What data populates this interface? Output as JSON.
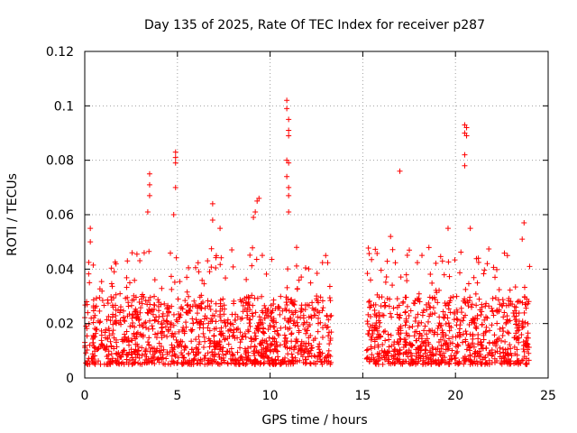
{
  "chart_data": {
    "type": "scatter",
    "title": "Day 135 of 2025, Rate Of TEC Index for receiver p287",
    "xlabel": "GPS time / hours",
    "ylabel": "ROTI / TECUs",
    "xlim": [
      0,
      25
    ],
    "ylim": [
      0,
      0.12
    ],
    "xticks": [
      "0",
      "5",
      "10",
      "15",
      "20",
      "25"
    ],
    "yticks": [
      "0",
      "0.02",
      "0.04",
      "0.06",
      "0.08",
      "0.1",
      "0.12"
    ],
    "grid": true,
    "marker": "+",
    "color": "#ff0000",
    "segments": [
      {
        "x_start": 0.0,
        "x_end": 13.3
      },
      {
        "x_start": 15.2,
        "x_end": 24.0
      }
    ],
    "series": [
      {
        "notable_points": [
          {
            "x": 0.3,
            "y": 0.055
          },
          {
            "x": 0.3,
            "y": 0.05
          },
          {
            "x": 0.1,
            "y": 0.028
          },
          {
            "x": 2.3,
            "y": 0.043
          },
          {
            "x": 3.5,
            "y": 0.075
          },
          {
            "x": 3.5,
            "y": 0.071
          },
          {
            "x": 3.5,
            "y": 0.067
          },
          {
            "x": 3.4,
            "y": 0.061
          },
          {
            "x": 4.9,
            "y": 0.083
          },
          {
            "x": 4.9,
            "y": 0.081
          },
          {
            "x": 4.9,
            "y": 0.079
          },
          {
            "x": 4.9,
            "y": 0.07
          },
          {
            "x": 4.8,
            "y": 0.06
          },
          {
            "x": 6.9,
            "y": 0.064
          },
          {
            "x": 6.9,
            "y": 0.058
          },
          {
            "x": 7.3,
            "y": 0.055
          },
          {
            "x": 9.4,
            "y": 0.066
          },
          {
            "x": 9.3,
            "y": 0.065
          },
          {
            "x": 9.2,
            "y": 0.061
          },
          {
            "x": 9.1,
            "y": 0.059
          },
          {
            "x": 10.9,
            "y": 0.102
          },
          {
            "x": 10.9,
            "y": 0.099
          },
          {
            "x": 11.0,
            "y": 0.095
          },
          {
            "x": 11.0,
            "y": 0.091
          },
          {
            "x": 11.0,
            "y": 0.089
          },
          {
            "x": 10.9,
            "y": 0.08
          },
          {
            "x": 11.0,
            "y": 0.079
          },
          {
            "x": 10.9,
            "y": 0.074
          },
          {
            "x": 11.0,
            "y": 0.07
          },
          {
            "x": 11.0,
            "y": 0.067
          },
          {
            "x": 11.0,
            "y": 0.061
          },
          {
            "x": 13.0,
            "y": 0.045
          },
          {
            "x": 17.0,
            "y": 0.076
          },
          {
            "x": 16.5,
            "y": 0.052
          },
          {
            "x": 19.6,
            "y": 0.055
          },
          {
            "x": 20.5,
            "y": 0.093
          },
          {
            "x": 20.6,
            "y": 0.092
          },
          {
            "x": 20.5,
            "y": 0.09
          },
          {
            "x": 20.6,
            "y": 0.089
          },
          {
            "x": 20.5,
            "y": 0.082
          },
          {
            "x": 20.5,
            "y": 0.078
          },
          {
            "x": 20.8,
            "y": 0.055
          },
          {
            "x": 23.7,
            "y": 0.057
          },
          {
            "x": 23.6,
            "y": 0.051
          },
          {
            "x": 22.8,
            "y": 0.045
          },
          {
            "x": 24.0,
            "y": 0.041
          }
        ],
        "typical_range": [
          0.005,
          0.03
        ]
      }
    ]
  }
}
